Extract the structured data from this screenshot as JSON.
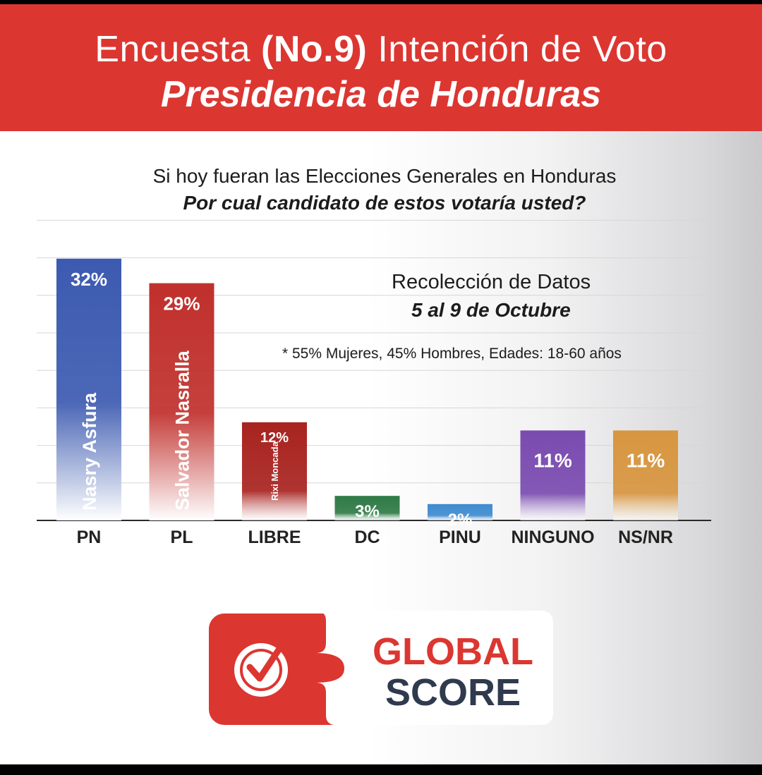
{
  "header": {
    "title_prefix": "Encuesta",
    "title_bold": "(No.9)",
    "title_suffix": "Intención de Voto",
    "subtitle": "Presidencia de Honduras"
  },
  "question": {
    "line1": "Si hoy fueran las Elecciones Generales en Honduras",
    "line2": "Por cual candidato de estos votaría usted?"
  },
  "survey_info": {
    "label": "Recolección de Datos",
    "dates": "5 al 9 de Octubre",
    "sample": "* 55% Mujeres, 45% Hombres, Edades: 18-60 años"
  },
  "chart_data": {
    "type": "bar",
    "title": "Por cual candidato de estos votaría usted?",
    "xlabel": "",
    "ylabel": "",
    "ylim": [
      0,
      35
    ],
    "grid": true,
    "categories": [
      "PN",
      "PL",
      "LIBRE",
      "DC",
      "PINU",
      "NINGUNO",
      "NS/NR"
    ],
    "values": [
      32,
      29,
      12,
      3,
      2,
      11,
      11
    ],
    "value_labels": [
      "32%",
      "29%",
      "12%",
      "3%",
      "2%",
      "11%",
      "11%"
    ],
    "candidates": [
      "Nasry Asfura",
      "Salvador Nasralla",
      "Rixi Moncada",
      "",
      "",
      "",
      ""
    ],
    "colors": [
      "#3c5ab0",
      "#c0302c",
      "#a8231f",
      "#2f7a47",
      "#3f8bd0",
      "#7a4bb0",
      "#d89640"
    ]
  },
  "logo": {
    "line1": "GLOBAL",
    "line2": "SCORE",
    "red": "#dc3631",
    "navy": "#2f3a4e"
  }
}
